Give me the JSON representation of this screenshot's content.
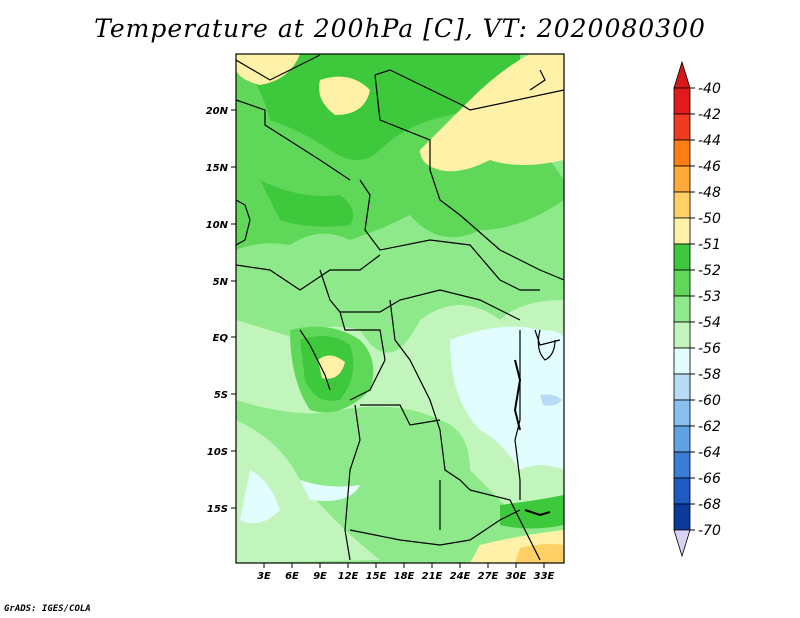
{
  "title": "Temperature at 200hPa [C], VT: 2020080300",
  "credit": "GrADS: IGES/COLA",
  "latitude_labels": [
    "20N",
    "15N",
    "10N",
    "5N",
    "EQ",
    "5S",
    "10S",
    "15S"
  ],
  "longitude_labels": [
    "3E",
    "6E",
    "9E",
    "12E",
    "15E",
    "18E",
    "21E",
    "24E",
    "27E",
    "30E",
    "33E"
  ],
  "colorbar": {
    "labels": [
      "-40",
      "-42",
      "-44",
      "-46",
      "-48",
      "-50",
      "-51",
      "-52",
      "-53",
      "-54",
      "-56",
      "-58",
      "-60",
      "-62",
      "-64",
      "-66",
      "-68",
      "-70"
    ],
    "colors": [
      "#e31a1c",
      "#f03b20",
      "#fd7e14",
      "#feab3a",
      "#fed065",
      "#fff2a8",
      "#3ec83c",
      "#5fd85a",
      "#8ee98a",
      "#c2f5bc",
      "#e1fdfd",
      "#b5dbf7",
      "#8ac0ef",
      "#5fa2e4",
      "#3b7dd6",
      "#1d5ac2",
      "#0c3a9a",
      "#081e6b"
    ],
    "top_arrow_color": "#d7191c",
    "bottom_arrow_color": "#d9d4f5"
  },
  "map_colors": {
    "band_m51": "#3ec83c",
    "band_m52": "#5fd85a",
    "band_m53": "#8ee98a",
    "band_m54": "#c2f5bc",
    "band_m56": "#e1fdfd",
    "band_m58": "#b5dbf7",
    "band_m50": "#fff2a8",
    "band_m48": "#fed065"
  }
}
